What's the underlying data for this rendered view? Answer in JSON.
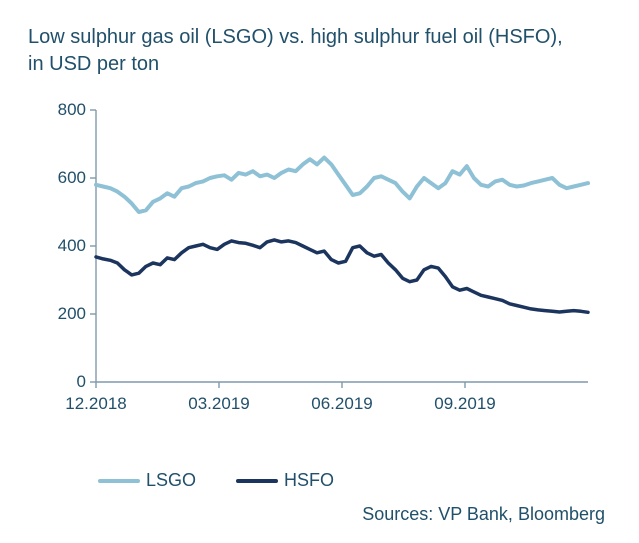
{
  "title_line1": "Low sulphur gas oil (LSGO) vs. high sulphur fuel oil (HSFO),",
  "title_line2": "in USD per ton",
  "chart": {
    "type": "line",
    "background_color": "#ffffff",
    "axis_color": "#7f9aaa",
    "tick_color": "#7f9aaa",
    "text_color": "#21506b",
    "label_fontsize": 17,
    "title_fontsize": 20,
    "ylim": [
      0,
      800
    ],
    "yticks": [
      0,
      200,
      400,
      600,
      800
    ],
    "xticks": [
      "12.2018",
      "03.2019",
      "06.2019",
      "09.2019"
    ],
    "xtick_positions": [
      0,
      0.25,
      0.5,
      0.75
    ],
    "line_width_lsgo": 4,
    "line_width_hsfo": 3.5,
    "series": [
      {
        "name": "LSGO",
        "color": "#8fc1d6",
        "values": [
          580,
          575,
          570,
          560,
          545,
          525,
          500,
          505,
          530,
          540,
          555,
          545,
          570,
          575,
          585,
          590,
          600,
          605,
          608,
          595,
          615,
          610,
          620,
          605,
          610,
          600,
          615,
          625,
          620,
          640,
          655,
          640,
          660,
          640,
          610,
          580,
          550,
          555,
          575,
          600,
          605,
          595,
          585,
          560,
          540,
          575,
          600,
          585,
          570,
          585,
          620,
          610,
          635,
          600,
          580,
          575,
          590,
          595,
          580,
          575,
          578,
          585,
          590,
          595,
          600,
          580,
          570,
          575,
          580,
          585
        ]
      },
      {
        "name": "HSFO",
        "color": "#1c355e",
        "values": [
          368,
          362,
          358,
          350,
          330,
          315,
          320,
          340,
          350,
          345,
          365,
          360,
          380,
          395,
          400,
          405,
          395,
          390,
          405,
          415,
          410,
          408,
          402,
          395,
          412,
          418,
          412,
          415,
          410,
          400,
          390,
          380,
          385,
          360,
          350,
          355,
          395,
          400,
          380,
          370,
          375,
          350,
          330,
          305,
          295,
          300,
          330,
          340,
          335,
          310,
          280,
          270,
          275,
          265,
          255,
          250,
          245,
          240,
          230,
          225,
          220,
          215,
          212,
          210,
          208,
          206,
          208,
          210,
          208,
          205
        ]
      }
    ],
    "legend": {
      "items": [
        {
          "label": "LSGO",
          "color": "#8fc1d6"
        },
        {
          "label": "HSFO",
          "color": "#1c355e"
        }
      ]
    }
  },
  "sources": "Sources: VP Bank, Bloomberg"
}
